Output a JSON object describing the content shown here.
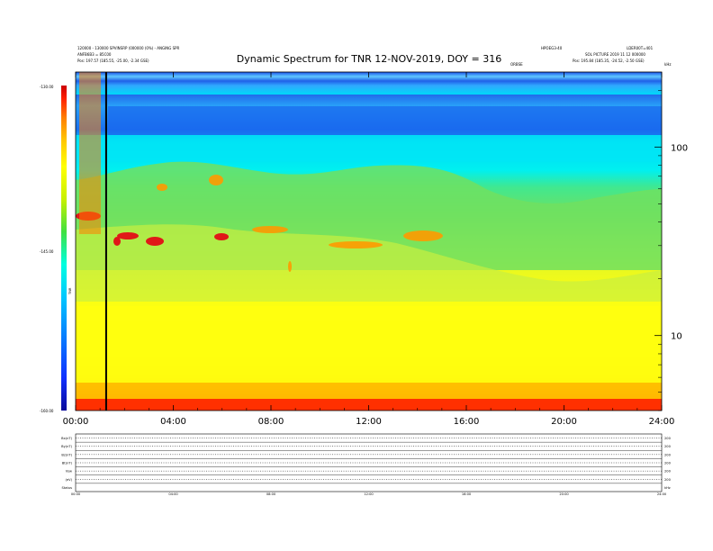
{
  "header": {
    "title": "Dynamic Spectrum for TNR 12-NOV-2019, DOY = 316",
    "left_info_line1": "120000 - 130000 SPVINSRP (000000 (0%) - ANGING SPR",
    "left_info_line2": "ANFB6B3 = 85C00",
    "left_info_line3": "Pos: 197.57 (185.55, -25.00, -2.34 GSE)",
    "right_info_line1": "HPOEG3-40",
    "right_info_line2": "LDER00T=401",
    "right_info_line3": "SOL PICTURE 2019 11 12 000000",
    "right_info_line4": "Pos: 195.84 (185.35, -24.52, -2.50 GSE)",
    "center_small": "ORBSE",
    "top_right_small": "kHz"
  },
  "chart_data": {
    "type": "heatmap",
    "title": "Dynamic Spectrum for TNR 12-NOV-2019, DOY = 316",
    "x": {
      "range_hours": [
        0,
        24
      ],
      "tick_labels": [
        "00:00",
        "04:00",
        "08:00",
        "12:00",
        "16:00",
        "20:00",
        "24:00"
      ]
    },
    "y": {
      "scale": "log",
      "unit": "kHz",
      "range_khz": [
        4,
        250
      ],
      "tick_labels": [
        "100",
        "10"
      ],
      "tick_values": [
        100,
        10
      ]
    },
    "colorbar": {
      "label": "TNR",
      "tick_labels": [
        "-130.00",
        "-145.00",
        "-160.00"
      ],
      "range": [
        -160,
        -130
      ],
      "colors": [
        "#0a0a9a",
        "#1030ff",
        "#00c8ff",
        "#00ffe0",
        "#40e040",
        "#c8f000",
        "#ffff00",
        "#ffc800",
        "#ff8000",
        "#ff2000",
        "#cc0000"
      ]
    },
    "marker_line_hours": 1.25,
    "colors": {
      "deep_blue": "#1a3ad8",
      "blue": "#2a78f0",
      "cyan": "#00e8f8",
      "green": "#60e060",
      "lime": "#c8f040",
      "yellow": "#ffff10",
      "orange": "#ffb400",
      "red": "#ff2000",
      "dark_red": "#d01010"
    },
    "panels": [
      {
        "label": "Bx(nT)",
        "right": "200"
      },
      {
        "label": "By(nT)",
        "right": "200"
      },
      {
        "label": "Bz(nT)",
        "right": "200"
      },
      {
        "label": "Bt(nT)",
        "right": "200"
      },
      {
        "label": "Vsw",
        "right": "200"
      },
      {
        "label": "(eV)",
        "right": "200"
      },
      {
        "label": "Status",
        "right": "kHz"
      }
    ],
    "panel_x_ticks": [
      "00:00",
      "04:00",
      "08:00",
      "12:00",
      "16:00",
      "20:00",
      "24:00"
    ]
  }
}
